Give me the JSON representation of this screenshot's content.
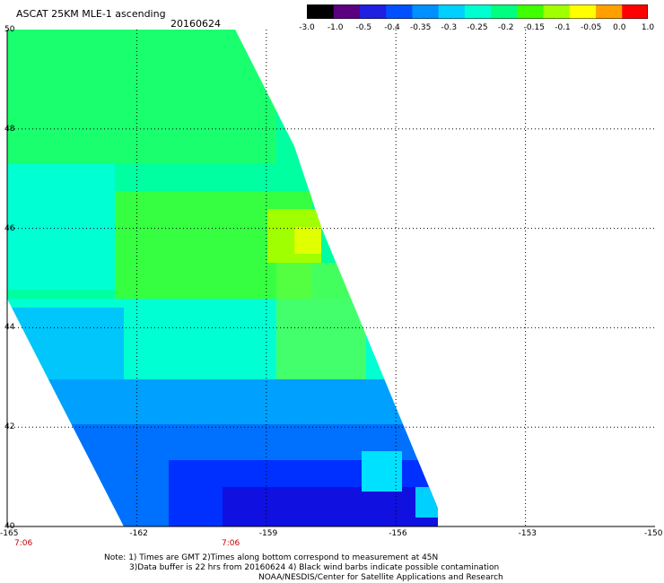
{
  "title": "ASCAT 25KM MLE-1 ascending",
  "date": "20160624",
  "colorbar": {
    "labels": [
      "-3.0",
      "-1.0",
      "-0.5",
      "-0.4",
      "-0.35",
      "-0.3",
      "-0.25",
      "-0.2",
      "-0.15",
      "-0.1",
      "-0.05",
      "0.0",
      "1.0"
    ],
    "colors": [
      "#000000",
      "#5a0080",
      "#2020e0",
      "#0050ff",
      "#0090ff",
      "#00d0ff",
      "#00ffd0",
      "#00ff80",
      "#40ff00",
      "#a0ff00",
      "#ffff00",
      "#ffa000",
      "#ff0000"
    ]
  },
  "axes": {
    "x_ticks": [
      "-165",
      "-162",
      "-159",
      "-156",
      "-153",
      "-150"
    ],
    "y_ticks": [
      "50",
      "48",
      "46",
      "44",
      "42",
      "40"
    ],
    "xlim": [
      -165,
      -150
    ],
    "ylim": [
      40,
      50
    ],
    "time_labels": [
      {
        "text": "7:06",
        "lon": -165
      },
      {
        "text": "7:06",
        "lon": -160.2
      }
    ]
  },
  "notes": [
    "Note: 1) Times are GMT 2)Times along bottom correspond to measurement at 45N",
    "3)Data buffer is 22 hrs from 20160624 4) Black wind barbs indicate possible contamination",
    "NOAA/NESDIS/Center for Satellite Applications and Research"
  ]
}
